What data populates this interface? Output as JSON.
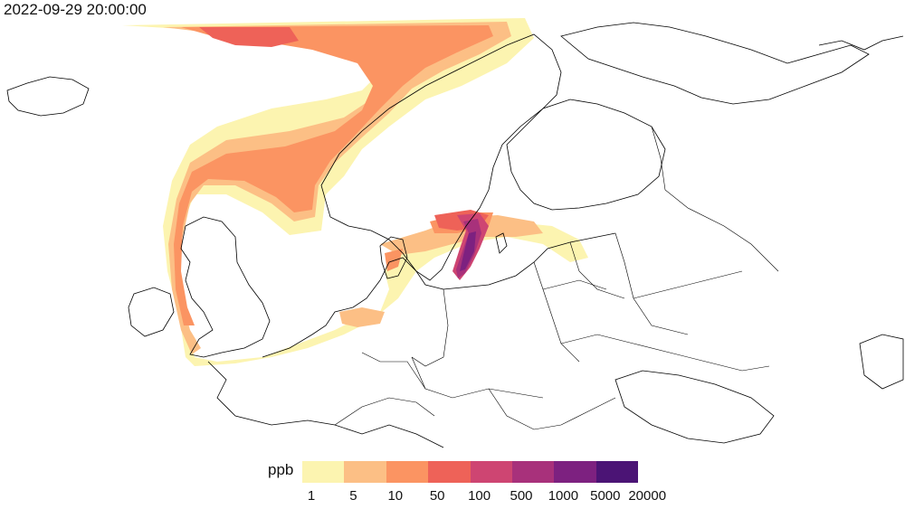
{
  "title": "2022-09-29 20:00:00",
  "legend": {
    "unit": "ppb",
    "ticks": [
      "1",
      "5",
      "10",
      "50",
      "100",
      "500",
      "1000",
      "5000",
      "20000"
    ],
    "colors": [
      "#fcf4b0",
      "#fcbf85",
      "#fb9462",
      "#ee6258",
      "#ce4572",
      "#a8317b",
      "#7d2180",
      "#4b1475"
    ]
  },
  "colors": {
    "level1": "#fcf4b0",
    "level2": "#fcbf85",
    "level3": "#fb9462",
    "level4": "#ee6258",
    "level5": "#ce4572",
    "level6": "#a8317b",
    "level7": "#7d2180",
    "level8": "#4b1475",
    "coastline": "#000000"
  }
}
